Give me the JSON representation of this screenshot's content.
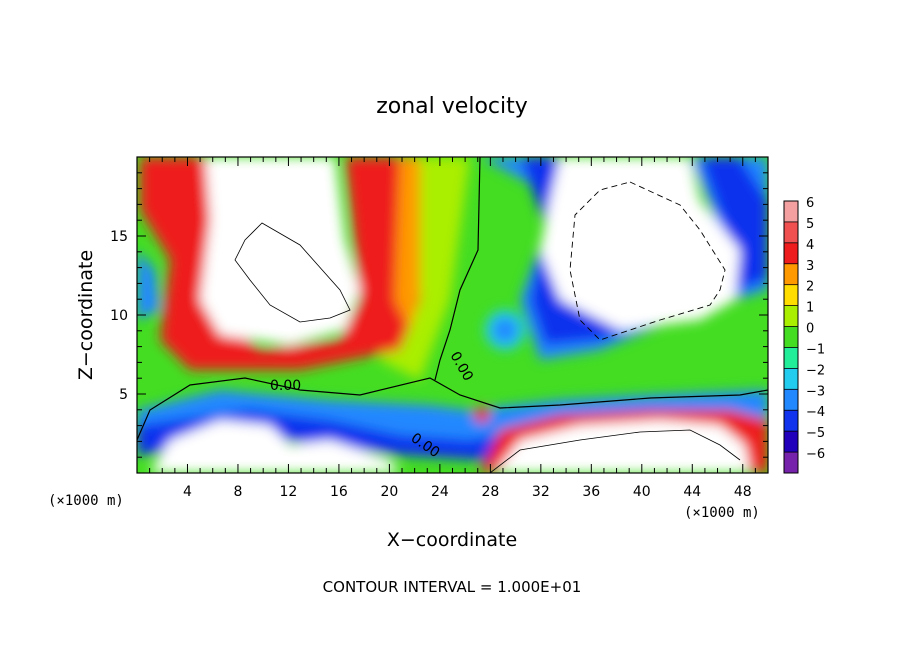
{
  "chart_data": {
    "type": "heatmap",
    "title": "zonal velocity",
    "xlabel": "X−coordinate",
    "ylabel": "Z−coordinate",
    "x_unit_left": "(×1000 m)",
    "x_unit_right": "(×1000 m)",
    "xlim": [
      0,
      50
    ],
    "ylim": [
      0,
      20
    ],
    "xticks": [
      4,
      8,
      12,
      16,
      20,
      24,
      28,
      32,
      36,
      40,
      44,
      48
    ],
    "yticks": [
      5,
      10,
      15
    ],
    "colorbar_levels": [
      "6",
      "5",
      "4",
      "3",
      "2",
      "1",
      "0",
      "−1",
      "−2",
      "−3",
      "−4",
      "−5",
      "−6"
    ],
    "contour_labels": [
      "0.00",
      "0.00",
      "0.00"
    ],
    "footer": "CONTOUR INTERVAL = 1.000E+01",
    "colors": {
      "pos_sat": "#ffffff",
      "v6": "#f4a0a0",
      "v5": "#f05050",
      "v4": "#ee1c1c",
      "v3": "#ff9900",
      "v2": "#ffdd00",
      "v1": "#aaee00",
      "v0": "#44dd22",
      "vm1": "#22ee99",
      "vm2": "#22ccee",
      "vm3": "#2288ff",
      "vm4": "#1133ee",
      "vm5": "#2200bb",
      "vm6": "#7722aa"
    }
  }
}
